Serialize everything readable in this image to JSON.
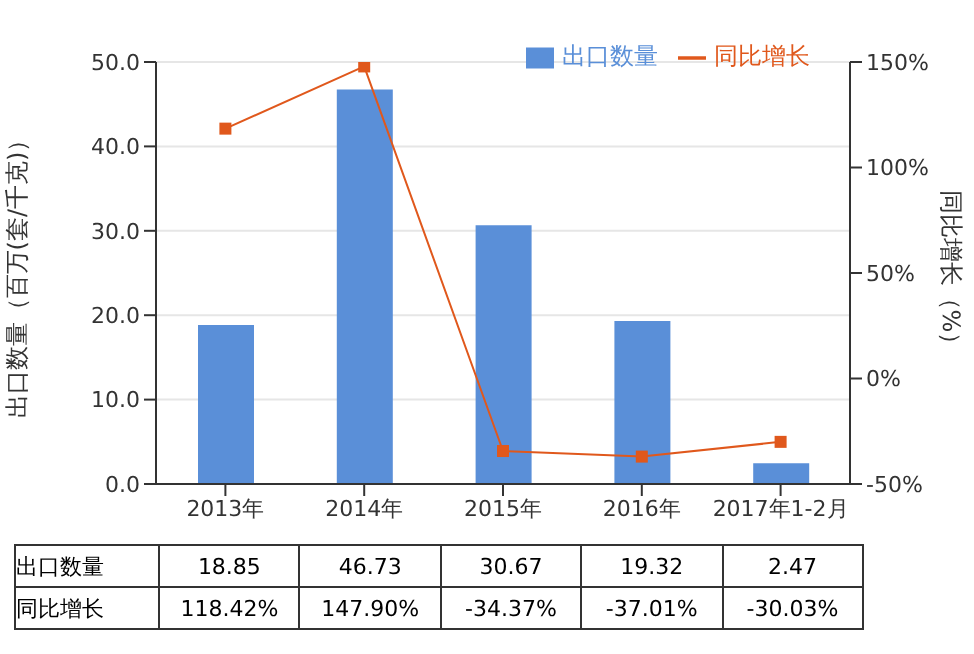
{
  "chart_data": {
    "type": "bar",
    "categories": [
      "2013年",
      "2014年",
      "2015年",
      "2016年",
      "2017年1-2月"
    ],
    "ylabel": "出口数量（百万(套/千克)）",
    "y2label": "同比增长（%）",
    "series": [
      {
        "name": "出口数量",
        "color": "#5a8fd8",
        "values": [
          18.85,
          46.73,
          30.67,
          19.32,
          2.47
        ],
        "value_labels": [
          "18.85",
          "46.73",
          "30.67",
          "19.32",
          "2.47"
        ]
      },
      {
        "name": "同比增长",
        "type": "line",
        "axis": "y2",
        "color": "#e0581c",
        "values": [
          118.42,
          147.9,
          -34.37,
          -37.01,
          -30.03
        ],
        "value_labels": [
          "118.42%",
          "147.90%",
          "-34.37%",
          "-37.01%",
          "-30.03%"
        ]
      }
    ],
    "ylim": [
      0,
      50
    ],
    "yticks": [
      {
        "value": 0,
        "label": "0.0"
      },
      {
        "value": 10,
        "label": "10.0"
      },
      {
        "value": 20,
        "label": "20.0"
      },
      {
        "value": 30,
        "label": "30.0"
      },
      {
        "value": 40,
        "label": "40.0"
      },
      {
        "value": 50,
        "label": "50.0"
      }
    ],
    "y2lim": [
      -50,
      150
    ],
    "y2ticks": [
      {
        "value": -50,
        "label": "-50%"
      },
      {
        "value": 0,
        "label": "0%"
      },
      {
        "value": 50,
        "label": "50%"
      },
      {
        "value": 100,
        "label": "100%"
      },
      {
        "value": 150,
        "label": "150%"
      }
    ],
    "grid": "y",
    "legend": "top right",
    "marker": "square"
  }
}
